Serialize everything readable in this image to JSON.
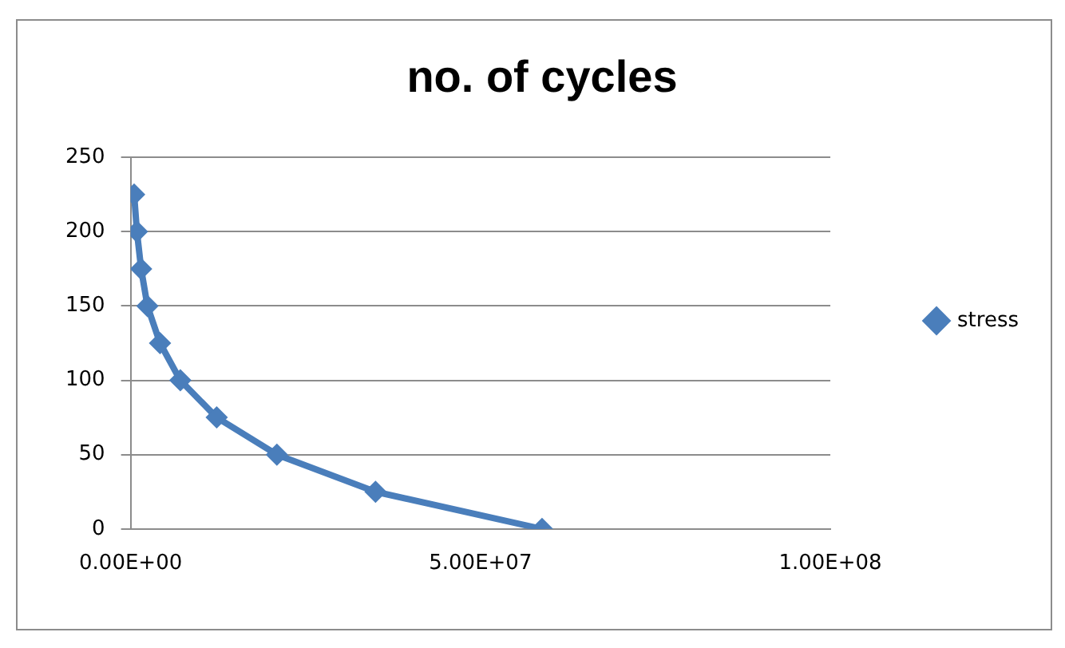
{
  "chart_data": {
    "type": "line",
    "title": "no. of cycles",
    "series": [
      {
        "name": "stress",
        "color": "#4a7ebb",
        "x": [
          500000,
          900000,
          1500000,
          2400000,
          4200000,
          7100000,
          12300000,
          20900000,
          35000000,
          58800000
        ],
        "values": [
          225,
          200,
          175,
          150,
          125,
          100,
          75,
          50,
          25,
          0
        ]
      }
    ],
    "xlim": [
      0,
      100000000
    ],
    "xticks": [
      {
        "value": 0,
        "label": "0.00E+00"
      },
      {
        "value": 50000000,
        "label": "5.00E+07"
      },
      {
        "value": 100000000,
        "label": "1.00E+08"
      }
    ],
    "ylim": [
      0,
      250
    ],
    "yticks": [
      0,
      50,
      100,
      150,
      200,
      250
    ],
    "grid": "y",
    "legend": "right",
    "marker": "diamond",
    "line_style": "solid"
  }
}
